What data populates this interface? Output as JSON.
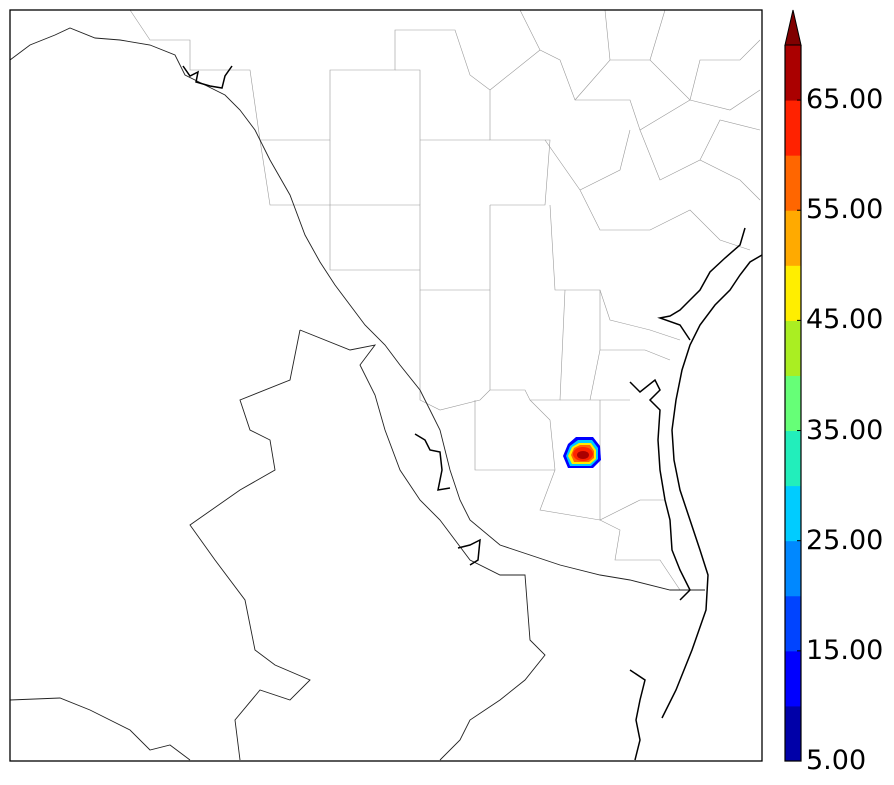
{
  "colorbar": {
    "tick_labels": [
      "65.00",
      "55.00",
      "45.00",
      "35.00",
      "25.00",
      "15.00",
      "5.00"
    ],
    "tick_values": [
      65,
      55,
      45,
      35,
      25,
      15,
      5
    ],
    "min": 5,
    "max": 70,
    "step": 5,
    "extend": "max",
    "colors": [
      "#0000a8",
      "#0000ff",
      "#0044ff",
      "#0088ff",
      "#00ccff",
      "#22eebb",
      "#66ff77",
      "#aaee22",
      "#ffee00",
      "#ffaa00",
      "#ff6600",
      "#ff2200",
      "#aa0000"
    ],
    "extend_color": "#800000"
  },
  "map": {
    "features": [
      "county-boundaries",
      "state-boundaries",
      "coastline"
    ],
    "reflectivity_cell": {
      "peak_value": 65,
      "colors": [
        "#0000ff",
        "#00ccff",
        "#ffee00",
        "#ff6600",
        "#ff2200",
        "#aa0000"
      ]
    }
  }
}
